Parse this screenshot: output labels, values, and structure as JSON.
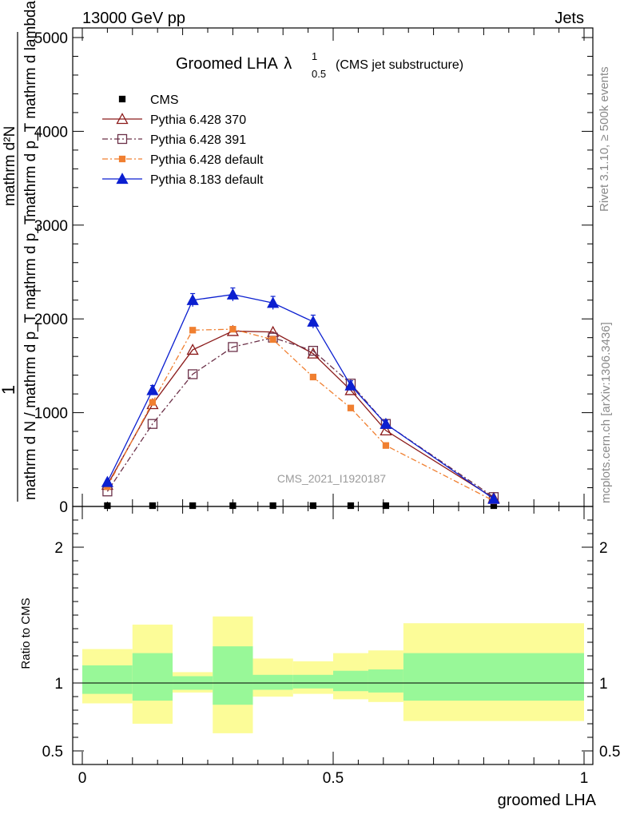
{
  "header": {
    "left": "13000 GeV pp",
    "right": "Jets"
  },
  "side_labels": {
    "rivet": "Rivet 3.1.10, ≥ 500k events",
    "mcplots": "mcplots.cern.ch [arXiv:1306.3436]"
  },
  "chart_data": {
    "type": "line",
    "title": "Groomed LHA",
    "title_symbol": "λ",
    "title_sub": "0.5",
    "title_sup": "1",
    "title_suffix": "(CMS jet substructure)",
    "watermark": "CMS_2021_I1920187",
    "xlabel": "groomed LHA",
    "ylabel": {
      "numerator": "1",
      "denominator": "mathrm d N / mathrm d p_T mathrm d p_T",
      "right_num": "mathrm d²N",
      "right_den": "mathrm d p_T mathrm d lambda",
      "sub_t": "T"
    },
    "ratio_ylabel": "Ratio to CMS",
    "xlim": [
      0,
      1
    ],
    "ylim": [
      0,
      5000
    ],
    "ratio_ylim": [
      0.4,
      2.3
    ],
    "x_ticks": [
      "0",
      "0.5",
      "1"
    ],
    "x_tick_values": [
      0,
      0.5,
      1
    ],
    "y_ticks": [
      "0",
      "1000",
      "2000",
      "3000",
      "4000",
      "5000"
    ],
    "y_tick_values": [
      0,
      1000,
      2000,
      3000,
      4000,
      5000
    ],
    "ratio_ticks": [
      "0.5",
      "1",
      "2"
    ],
    "ratio_tick_values": [
      0.5,
      1,
      2
    ],
    "x": [
      0.05,
      0.14,
      0.22,
      0.3,
      0.38,
      0.46,
      0.535,
      0.605,
      0.82
    ],
    "series": [
      {
        "name": "CMS",
        "color": "#000000",
        "marker": "square-filled",
        "line": "none",
        "values": [
          0,
          0,
          0,
          0,
          0,
          0,
          0,
          0,
          0
        ]
      },
      {
        "name": "Pythia 6.428 370",
        "color": "#8b1a1a",
        "marker": "triangle-open",
        "line": "solid",
        "values": [
          230,
          1090,
          1670,
          1870,
          1860,
          1630,
          1240,
          810,
          90
        ],
        "errors": [
          0,
          0,
          0,
          0,
          0,
          0,
          0,
          0,
          0
        ]
      },
      {
        "name": "Pythia 6.428 391",
        "color": "#6b3048",
        "marker": "square-open",
        "line": "dashdot",
        "values": [
          160,
          880,
          1410,
          1700,
          1800,
          1660,
          1310,
          880,
          100
        ],
        "errors": [
          0,
          0,
          0,
          0,
          0,
          0,
          0,
          0,
          0
        ]
      },
      {
        "name": "Pythia 6.428 default",
        "color": "#f07f30",
        "marker": "square-filled",
        "line": "dashdot",
        "values": [
          210,
          1110,
          1880,
          1890,
          1780,
          1380,
          1050,
          650,
          60
        ],
        "errors": [
          0,
          0,
          0,
          0,
          0,
          0,
          0,
          0,
          0
        ]
      },
      {
        "name": "Pythia 8.183 default",
        "color": "#0b1fd0",
        "marker": "triangle-filled",
        "line": "solid",
        "values": [
          260,
          1240,
          2200,
          2260,
          2170,
          1970,
          1290,
          880,
          80
        ],
        "errors": [
          20,
          50,
          70,
          70,
          70,
          70,
          50,
          40,
          15
        ]
      }
    ],
    "ratio_bins": [
      {
        "lo": 0.0,
        "hi": 0.1,
        "green": [
          0.92,
          1.13
        ],
        "yellow": [
          0.85,
          1.25
        ]
      },
      {
        "lo": 0.1,
        "hi": 0.18,
        "green": [
          0.87,
          1.22
        ],
        "yellow": [
          0.7,
          1.43
        ]
      },
      {
        "lo": 0.18,
        "hi": 0.26,
        "green": [
          0.95,
          1.05
        ],
        "yellow": [
          0.93,
          1.08
        ]
      },
      {
        "lo": 0.26,
        "hi": 0.34,
        "green": [
          0.84,
          1.27
        ],
        "yellow": [
          0.63,
          1.49
        ]
      },
      {
        "lo": 0.34,
        "hi": 0.42,
        "green": [
          0.95,
          1.06
        ],
        "yellow": [
          0.9,
          1.18
        ]
      },
      {
        "lo": 0.42,
        "hi": 0.5,
        "green": [
          0.96,
          1.06
        ],
        "yellow": [
          0.92,
          1.16
        ]
      },
      {
        "lo": 0.5,
        "hi": 0.57,
        "green": [
          0.94,
          1.09
        ],
        "yellow": [
          0.88,
          1.22
        ]
      },
      {
        "lo": 0.57,
        "hi": 0.64,
        "green": [
          0.93,
          1.1
        ],
        "yellow": [
          0.86,
          1.24
        ]
      },
      {
        "lo": 0.64,
        "hi": 1.0,
        "green": [
          0.87,
          1.22
        ],
        "yellow": [
          0.72,
          1.44
        ]
      }
    ]
  },
  "colors": {
    "green_band": "#98f898",
    "yellow_band": "#fcfc98",
    "watermark": "#9a9a9a",
    "side_text": "#8a8a8a"
  }
}
